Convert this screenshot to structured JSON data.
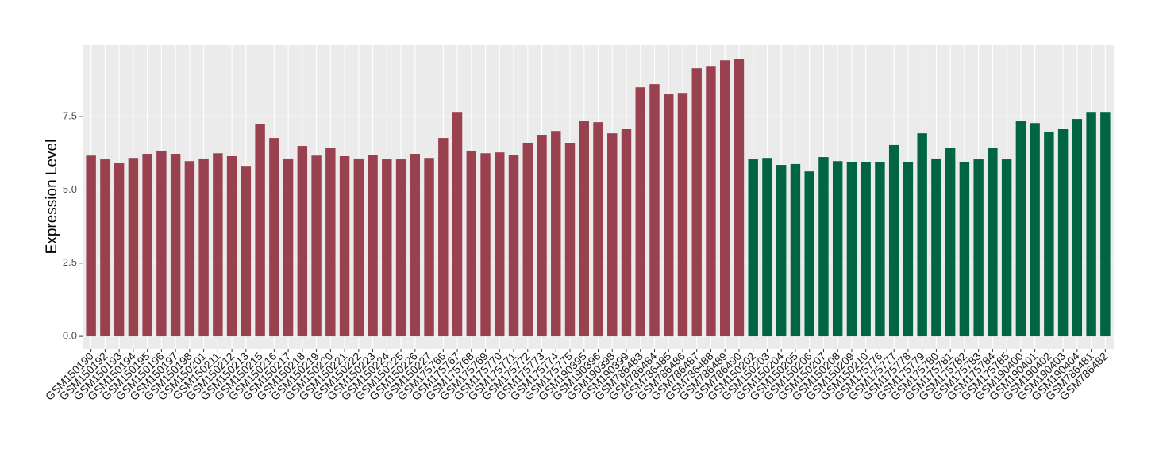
{
  "chart_data": {
    "type": "bar",
    "y_label": "Expression Level",
    "categories": [
      "GSM150190",
      "GSM150192",
      "GSM150193",
      "GSM150194",
      "GSM150195",
      "GSM150196",
      "GSM150197",
      "GSM150198",
      "GSM150201",
      "GSM150211",
      "GSM150212",
      "GSM150213",
      "GSM150215",
      "GSM150216",
      "GSM150217",
      "GSM150218",
      "GSM150219",
      "GSM150220",
      "GSM150221",
      "GSM150222",
      "GSM150223",
      "GSM150224",
      "GSM150225",
      "GSM150226",
      "GSM150227",
      "GSM175766",
      "GSM175767",
      "GSM175768",
      "GSM175769",
      "GSM175770",
      "GSM175771",
      "GSM175772",
      "GSM175773",
      "GSM175774",
      "GSM175775",
      "GSM190395",
      "GSM190396",
      "GSM190398",
      "GSM190399",
      "GSM786483",
      "GSM786484",
      "GSM786485",
      "GSM786486",
      "GSM786487",
      "GSM786488",
      "GSM786489",
      "GSM786490",
      "GSM150202",
      "GSM150203",
      "GSM150204",
      "GSM150205",
      "GSM150206",
      "GSM150207",
      "GSM150208",
      "GSM150209",
      "GSM150210",
      "GSM175776",
      "GSM175777",
      "GSM175778",
      "GSM175779",
      "GSM175780",
      "GSM175781",
      "GSM175782",
      "GSM175783",
      "GSM175784",
      "GSM175785",
      "GSM190400",
      "GSM190401",
      "GSM190402",
      "GSM190403",
      "GSM190404",
      "GSM786481",
      "GSM786482"
    ],
    "series": [
      {
        "color": "#9a4150",
        "values": [
          6.17,
          6.04,
          5.93,
          6.09,
          6.23,
          6.34,
          6.23,
          5.98,
          6.07,
          6.25,
          6.15,
          5.82,
          7.26,
          6.77,
          6.07,
          6.5,
          6.17,
          6.44,
          6.15,
          6.07,
          6.2,
          6.04,
          6.04,
          6.23,
          6.09,
          6.77,
          7.66,
          6.34,
          6.25,
          6.28,
          6.2,
          6.61,
          6.88,
          7.01,
          6.61,
          7.34,
          7.31,
          6.93,
          7.07,
          8.5,
          8.61,
          8.26,
          8.31,
          9.15,
          9.23,
          9.42,
          9.48,
          null,
          null,
          null,
          null,
          null,
          null,
          null,
          null,
          null,
          null,
          null,
          null,
          null,
          null,
          null,
          null,
          null,
          null,
          null,
          null,
          null,
          null,
          null,
          null,
          null,
          null
        ]
      },
      {
        "color": "#006641",
        "values": [
          null,
          null,
          null,
          null,
          null,
          null,
          null,
          null,
          null,
          null,
          null,
          null,
          null,
          null,
          null,
          null,
          null,
          null,
          null,
          null,
          null,
          null,
          null,
          null,
          null,
          null,
          null,
          null,
          null,
          null,
          null,
          null,
          null,
          null,
          null,
          null,
          null,
          null,
          null,
          null,
          null,
          null,
          null,
          null,
          null,
          null,
          null,
          6.04,
          6.09,
          5.85,
          5.88,
          5.63,
          6.12,
          5.98,
          5.96,
          5.96,
          5.96,
          6.53,
          5.96,
          6.93,
          6.07,
          6.42,
          5.96,
          6.04,
          6.44,
          6.04,
          7.34,
          7.28,
          6.99,
          7.07,
          7.42,
          7.66,
          7.66
        ]
      }
    ],
    "ylim": [
      -0.43,
      9.94
    ],
    "yticks": [
      {
        "value": 0,
        "label": "0.0"
      },
      {
        "value": 2.5,
        "label": "2.5"
      },
      {
        "value": 5,
        "label": "5.0"
      },
      {
        "value": 7.5,
        "label": "7.5"
      }
    ],
    "grid": true
  }
}
